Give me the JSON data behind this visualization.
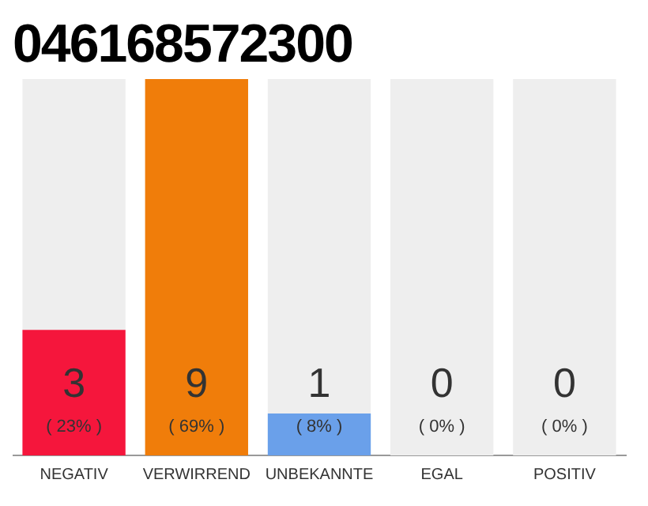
{
  "chart_data": {
    "type": "bar",
    "title": "046168572300",
    "categories": [
      "NEGATIV",
      "VERWIRREND",
      "UNBEKANNTE",
      "EGAL",
      "POSITIV"
    ],
    "stacked": true,
    "series": [
      {
        "colors": [
          "#f5163c",
          "#f07d0a",
          "#6aa0ea",
          "#6aa0ea",
          "#6aa0ea"
        ],
        "values": [
          3,
          9,
          1,
          0,
          0
        ],
        "value_labels": [
          "3",
          "9",
          "1",
          null,
          null
        ]
      },
      {
        "color": "#eeeeee",
        "values": [
          6,
          0,
          8,
          9,
          9
        ]
      }
    ],
    "ylim": [
      0,
      9
    ],
    "tick_labels": "x",
    "grid": false,
    "legend": false,
    "annotations": [
      "( 23% )",
      "( 69% )",
      "( 8% )",
      "( 0% )",
      "( 0% )",
      {
        "text": "0",
        "x": "EGAL",
        "y": 0
      },
      {
        "text": "0",
        "x": "POSITIV",
        "y": 0
      }
    ]
  }
}
